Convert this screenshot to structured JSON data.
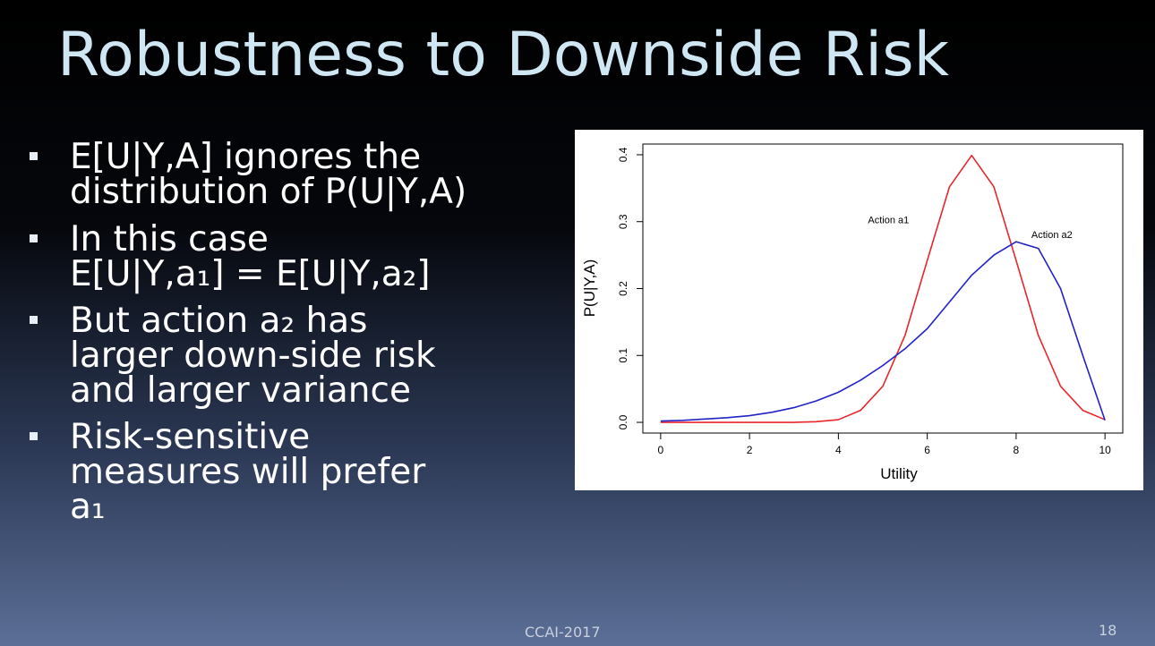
{
  "title": "Robustness to Downside Risk",
  "bullets": [
    [
      "E[U|Y,A] ignores the",
      "distribution of P(U|Y,A)"
    ],
    [
      "In this case",
      "E[U|Y,a₁] = E[U|Y,a₂]"
    ],
    [
      "But action a₂ has",
      "larger down-side risk",
      "and larger variance"
    ],
    [
      "Risk-sensitive",
      "measures will prefer",
      "a₁"
    ]
  ],
  "footer": "CCAI-2017",
  "page_number": "18",
  "chart_data": {
    "type": "line",
    "xlabel": "Utility",
    "ylabel": "P(U|Y,A)",
    "x": [
      0,
      0.5,
      1,
      1.5,
      2,
      2.5,
      3,
      3.5,
      4,
      4.5,
      5,
      5.5,
      6,
      6.5,
      7,
      7.5,
      8,
      8.5,
      9,
      9.5,
      10
    ],
    "series": [
      {
        "name": "Action a1",
        "color": "#e8262b",
        "values": [
          0,
          0,
          0,
          0,
          0,
          0,
          0,
          0.001,
          0.004,
          0.018,
          0.054,
          0.13,
          0.242,
          0.352,
          0.399,
          0.352,
          0.242,
          0.13,
          0.054,
          0.018,
          0.004
        ]
      },
      {
        "name": "Action a2",
        "color": "#2222c8",
        "values": [
          0.002,
          0.003,
          0.005,
          0.007,
          0.01,
          0.015,
          0.022,
          0.032,
          0.045,
          0.063,
          0.085,
          0.11,
          0.14,
          0.18,
          0.22,
          0.25,
          0.27,
          0.26,
          0.2,
          0.1,
          0.003
        ]
      }
    ],
    "xlim": [
      -0.4,
      10.4
    ],
    "ylim": [
      -0.016,
      0.416
    ],
    "xticks": [
      0,
      2,
      4,
      6,
      8,
      10
    ],
    "yticks": [
      {
        "value": 0,
        "label": "0.0"
      },
      0.1,
      0.2,
      0.3,
      0.4
    ]
  }
}
